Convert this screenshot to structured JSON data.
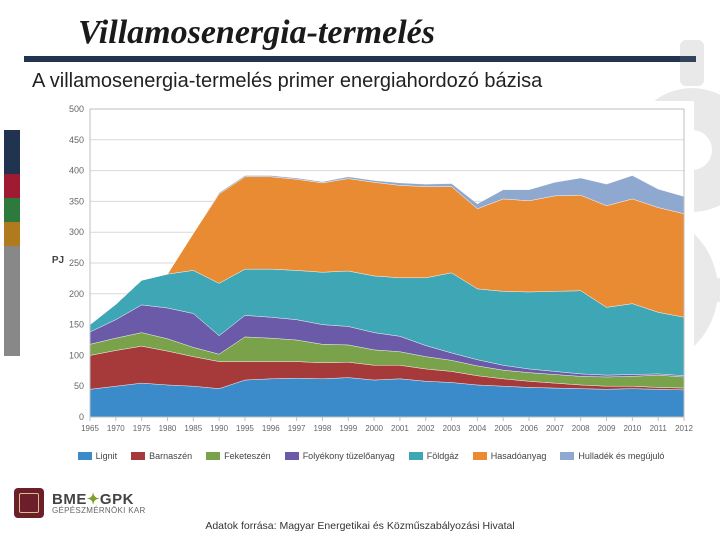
{
  "title": "Villamosenergia-termelés",
  "subtitle": "A villamosenergia-termelés primer energiahordozó bázisa",
  "source_line": "Adatok forrása: Magyar Energetikai és Közműszabályozási Hivatal",
  "logo": {
    "line1_a": "BME",
    "line1_b": "GPK",
    "line2": "GÉPÉSZMÉRNÖKI KAR"
  },
  "side_stripes": [
    {
      "color": "#20344f",
      "h": 44
    },
    {
      "color": "#9f1b32",
      "h": 24
    },
    {
      "color": "#2e7a3c",
      "h": 24
    },
    {
      "color": "#b07a1e",
      "h": 24
    },
    {
      "color": "#888888",
      "h": 110
    }
  ],
  "chart": {
    "type": "stacked-area",
    "background_color": "#ffffff",
    "plot_border_color": "#bfbfbf",
    "grid_color": "#d9d9d9",
    "axis_text_color": "#666666",
    "axis_font_size": 9,
    "y_label": "PJ",
    "y_label_fontsize": 10,
    "xlim_idx": [
      0,
      21
    ],
    "ylim": [
      0,
      500
    ],
    "ytick_step": 50,
    "x_categories": [
      "1965",
      "1970",
      "1975",
      "1980",
      "1985",
      "1990",
      "1995",
      "1996",
      "1997",
      "1998",
      "1999",
      "2000",
      "2001",
      "2002",
      "2003",
      "2004",
      "2005",
      "2006",
      "2007",
      "2008",
      "2009",
      "2010",
      "2011",
      "2012"
    ],
    "x_tick_every": 1,
    "series": [
      {
        "name": "Lignit",
        "color": "#3b8bca",
        "values": [
          45,
          50,
          55,
          52,
          50,
          46,
          60,
          62,
          63,
          62,
          64,
          60,
          62,
          58,
          56,
          52,
          50,
          48,
          47,
          46,
          45,
          46,
          45,
          44
        ]
      },
      {
        "name": "Barnaszén",
        "color": "#a63a3a",
        "values": [
          55,
          58,
          60,
          55,
          48,
          44,
          30,
          28,
          27,
          26,
          25,
          24,
          22,
          20,
          18,
          15,
          12,
          10,
          8,
          6,
          5,
          4,
          3,
          3
        ]
      },
      {
        "name": "Feketeszén",
        "color": "#7aa24a",
        "values": [
          18,
          20,
          22,
          20,
          15,
          12,
          40,
          38,
          35,
          30,
          28,
          25,
          22,
          20,
          18,
          16,
          14,
          14,
          14,
          14,
          15,
          16,
          20,
          18
        ]
      },
      {
        "name": "Folyékony tüzelőanyag",
        "color": "#6a5aa8",
        "values": [
          20,
          30,
          45,
          50,
          55,
          30,
          35,
          34,
          33,
          32,
          30,
          28,
          25,
          18,
          12,
          10,
          8,
          6,
          5,
          4,
          3,
          3,
          2,
          2
        ]
      },
      {
        "name": "Földgáz",
        "color": "#3fa6b5",
        "values": [
          12,
          25,
          40,
          55,
          70,
          85,
          75,
          78,
          80,
          85,
          90,
          92,
          95,
          110,
          130,
          115,
          120,
          125,
          130,
          135,
          110,
          115,
          100,
          95
        ]
      },
      {
        "name": "Hasadóanyag",
        "color": "#e98b33",
        "values": [
          0,
          0,
          0,
          0,
          60,
          145,
          150,
          150,
          148,
          145,
          150,
          152,
          150,
          148,
          140,
          130,
          150,
          148,
          155,
          155,
          165,
          170,
          170,
          168
        ]
      },
      {
        "name": "Hulladék és megújuló",
        "color": "#8fa8cf",
        "values": [
          0,
          0,
          0,
          0,
          0,
          2,
          2,
          2,
          2,
          2,
          3,
          3,
          4,
          4,
          5,
          8,
          15,
          18,
          22,
          28,
          35,
          38,
          30,
          28
        ]
      }
    ],
    "legend_position": "bottom"
  }
}
